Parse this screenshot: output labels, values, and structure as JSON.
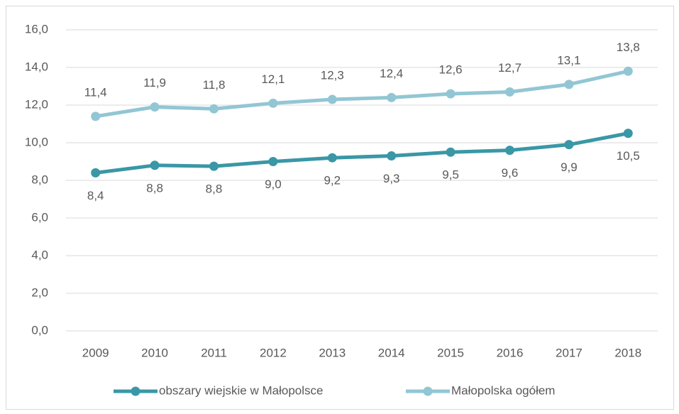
{
  "chart_data": {
    "type": "line",
    "categories": [
      "2009",
      "2010",
      "2011",
      "2012",
      "2013",
      "2014",
      "2015",
      "2016",
      "2017",
      "2018"
    ],
    "series": [
      {
        "name": "obszary wiejskie w Małopolsce",
        "color": "#3a97a6",
        "values": [
          8.4,
          8.8,
          8.75,
          9.0,
          9.2,
          9.3,
          9.5,
          9.6,
          9.9,
          10.5
        ],
        "value_labels": [
          "8,4",
          "8,8",
          "8,8",
          "9,0",
          "9,2",
          "9,3",
          "9,5",
          "9,6",
          "9,9",
          "10,5"
        ]
      },
      {
        "name": "Małopolska ogółem",
        "color": "#92c6d4",
        "values": [
          11.4,
          11.9,
          11.8,
          12.1,
          12.3,
          12.4,
          12.6,
          12.7,
          13.1,
          13.8
        ],
        "value_labels": [
          "11,4",
          "11,9",
          "11,8",
          "12,1",
          "12,3",
          "12,4",
          "12,6",
          "12,7",
          "13,1",
          "13,8"
        ]
      }
    ],
    "ylim": [
      0,
      16
    ],
    "yticks": [
      {
        "value": 0,
        "label": "0,0"
      },
      {
        "value": 2,
        "label": "2,0"
      },
      {
        "value": 4,
        "label": "4,0"
      },
      {
        "value": 6,
        "label": "6,0"
      },
      {
        "value": 8,
        "label": "8,0"
      },
      {
        "value": 10,
        "label": "10,0"
      },
      {
        "value": 12,
        "label": "12,0"
      },
      {
        "value": 14,
        "label": "14,0"
      },
      {
        "value": 16,
        "label": "16,0"
      }
    ],
    "grid": true,
    "legend": "bottom"
  }
}
